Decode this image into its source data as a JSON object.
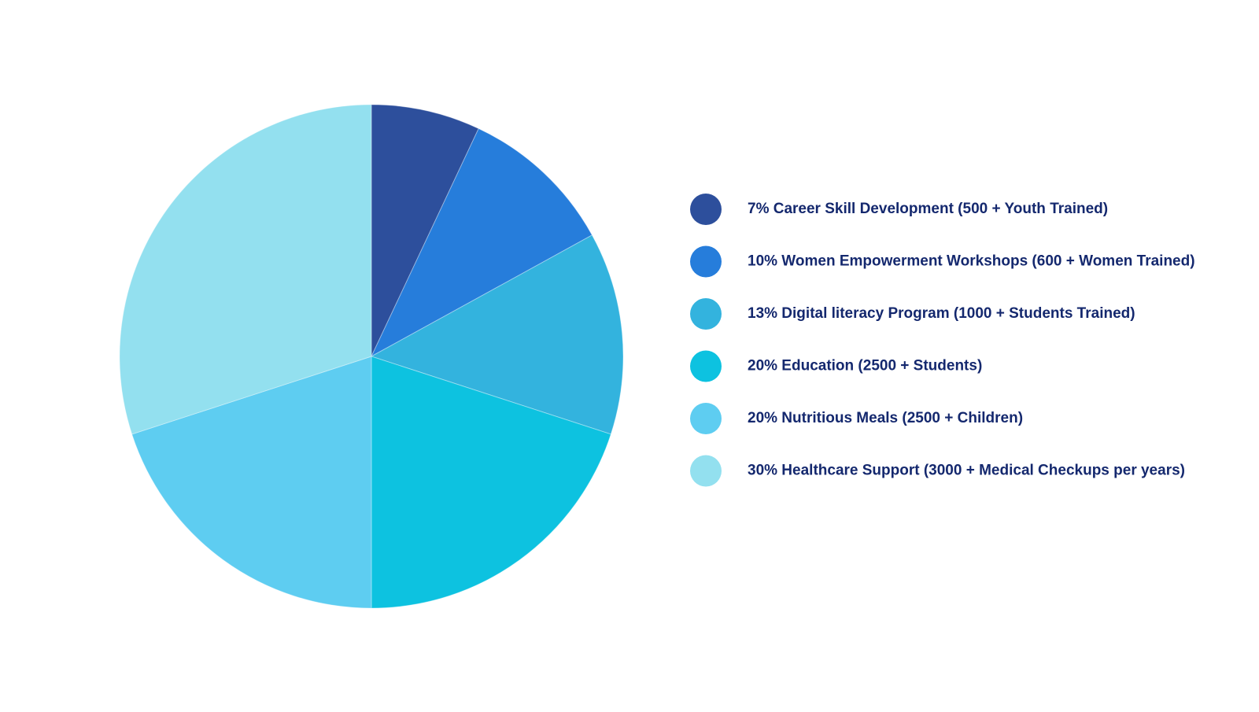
{
  "chart_data": {
    "type": "pie",
    "categories": [
      "7% Career Skill Development (500 + Youth Trained)",
      "10% Women Empowerment Workshops (600 + Women Trained)",
      "13% Digital literacy Program (1000 + Students Trained)",
      "20% Education (2500 + Students)",
      "20% Nutritious Meals (2500 + Children)",
      "30% Healthcare Support (3000 + Medical Checkups per years)"
    ],
    "values": [
      7,
      10,
      13,
      20,
      20,
      30
    ],
    "colors": [
      "#2d4f9c",
      "#267ddb",
      "#33b3de",
      "#0dc2e0",
      "#5ecdf1",
      "#93e0ef"
    ],
    "legend": "right"
  }
}
